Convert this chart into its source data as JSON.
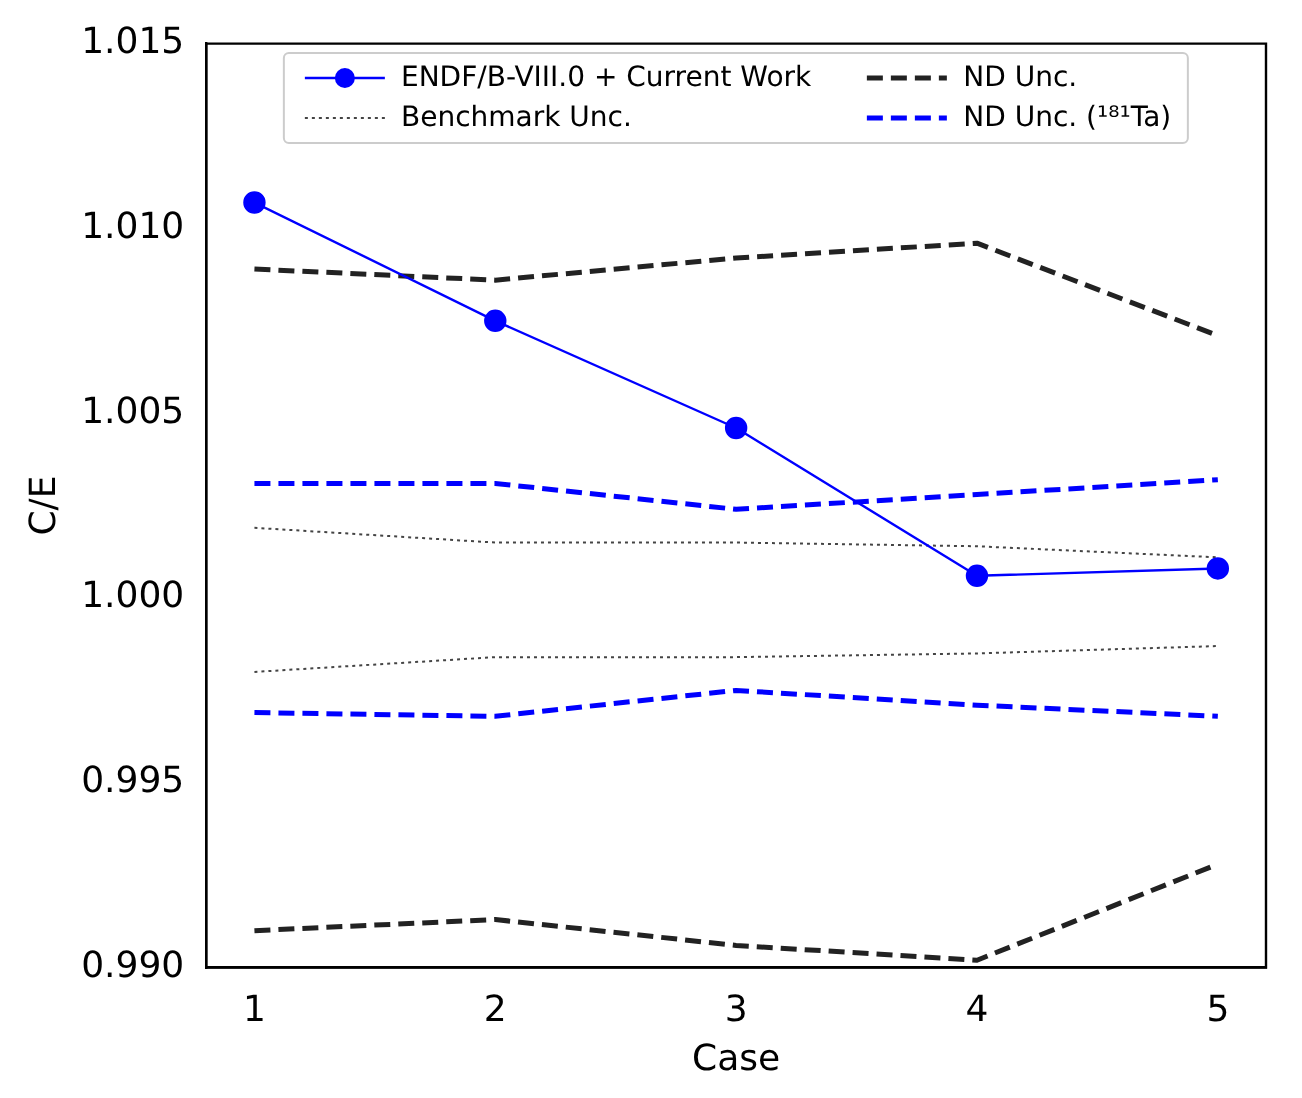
{
  "chart_data": {
    "type": "line",
    "xlabel": "Case",
    "ylabel": "C/E",
    "x": [
      1,
      2,
      3,
      4,
      5
    ],
    "xlim": [
      0.8,
      5.2
    ],
    "xticks": [
      1,
      2,
      3,
      4,
      5
    ],
    "ylim": [
      0.99,
      1.015
    ],
    "yticks": [
      {
        "value": 0.99,
        "label": "0.990"
      },
      {
        "value": 0.995,
        "label": "0.995"
      },
      {
        "value": 1.0,
        "label": "1.000"
      },
      {
        "value": 1.005,
        "label": "1.005"
      },
      {
        "value": 1.01,
        "label": "1.010"
      },
      {
        "value": 1.015,
        "label": "1.015"
      }
    ],
    "grid": false,
    "legend": "top",
    "series": [
      {
        "name": "ENDF/B-VIII.0 + Current Work",
        "color": "#0000ff",
        "marker": "circle",
        "line_style": "solid",
        "values": [
          1.0107,
          1.0075,
          1.0046,
          1.0006,
          1.0008
        ]
      },
      {
        "name": "ND Unc.",
        "color": "#222222",
        "marker": "none",
        "line_style": "dashed",
        "values": [
          1.0089,
          1.0086,
          1.0092,
          1.0096,
          1.0071
        ]
      },
      {
        "name": "Benchmark Unc.",
        "color": "#444444",
        "marker": "none",
        "line_style": "dotted",
        "values": [
          1.0019,
          1.0015,
          1.0015,
          1.0014,
          1.0011
        ]
      },
      {
        "name": "ND Unc. (¹⁸¹Ta)",
        "color": "#0000ff",
        "marker": "none",
        "line_style": "dashed",
        "values": [
          1.0031,
          1.0031,
          1.0024,
          1.0028,
          1.0032
        ]
      },
      {
        "color": "#222222",
        "marker": "none",
        "line_style": "dashed",
        "values": [
          0.991,
          0.9913,
          0.9906,
          0.9902,
          0.9928
        ]
      },
      {
        "color": "#444444",
        "marker": "none",
        "line_style": "dotted",
        "values": [
          0.998,
          0.9984,
          0.9984,
          0.9985,
          0.9987
        ]
      },
      {
        "color": "#0000ff",
        "marker": "none",
        "line_style": "dashed",
        "values": [
          0.9969,
          0.9968,
          0.9975,
          0.9971,
          0.9968
        ]
      }
    ]
  }
}
